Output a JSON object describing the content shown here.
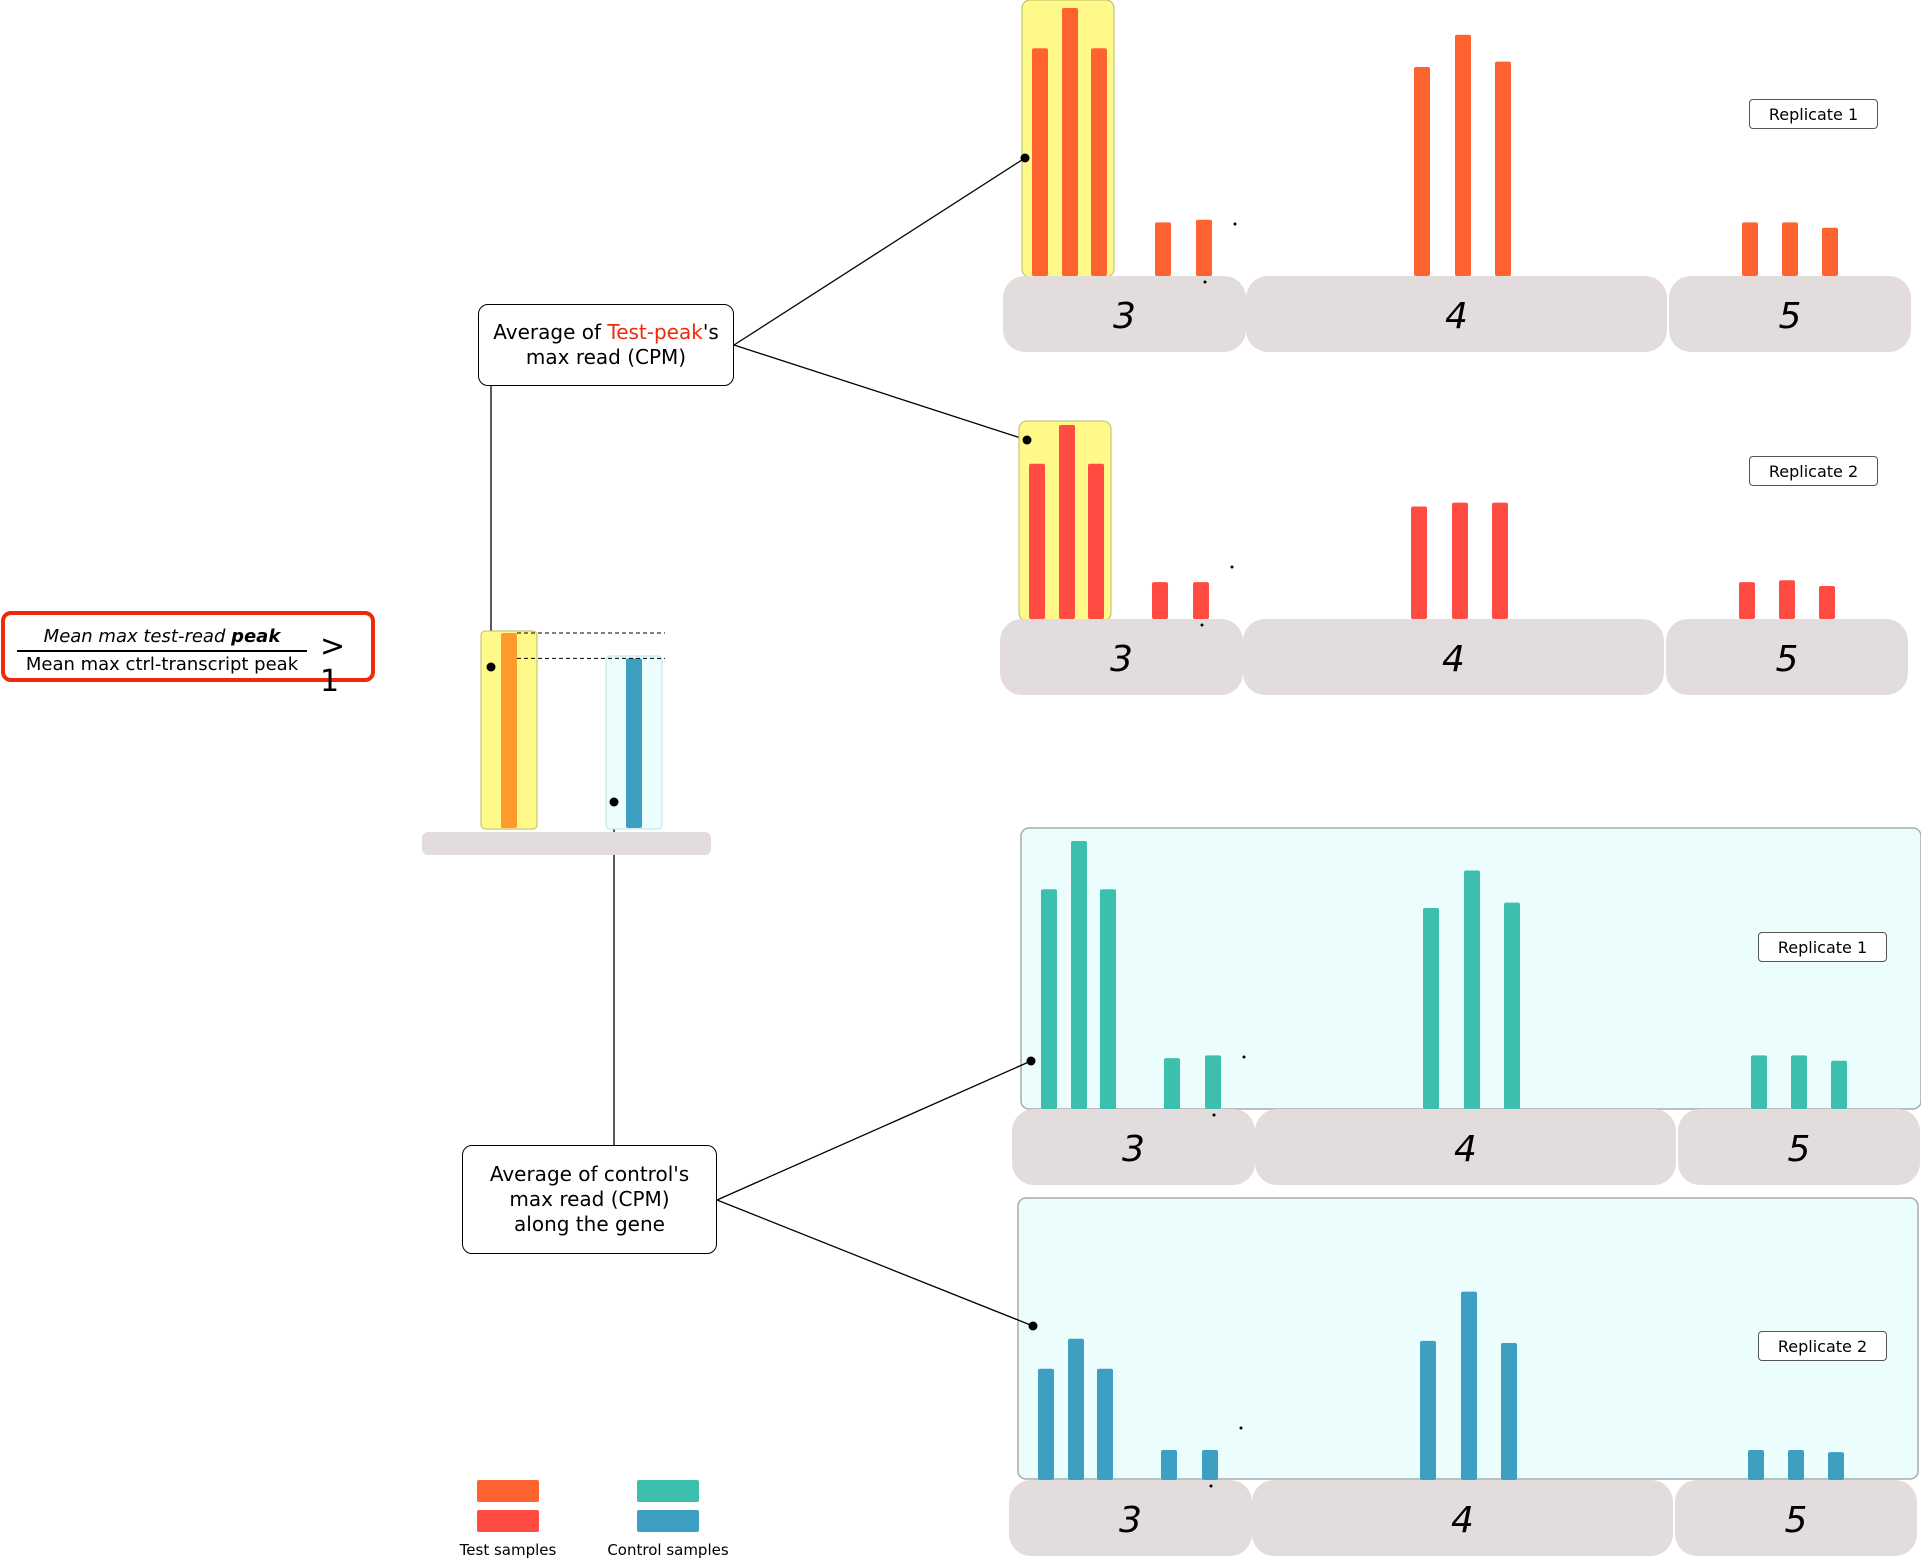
{
  "ratio": {
    "numerator_prefix": "Mean max test-read ",
    "numerator_bold": "peak",
    "denominator": "Mean max ctrl-transcript peak",
    "comparison": "> 1"
  },
  "callouts": {
    "test": {
      "prefix": "Average of ",
      "highlight": "Test-peak",
      "suffix": "'s",
      "line2": "max read (CPM)"
    },
    "control": {
      "line1": "Average of control's",
      "line2": "max read (CPM)",
      "line3": "along the gene"
    }
  },
  "panels": [
    {
      "group": "test",
      "replicate": "Replicate 1",
      "exons": [
        "3",
        "4",
        "5"
      ],
      "heights": [
        0.85,
        1.0,
        0.85,
        0.2,
        0.21,
        0.78,
        0.9,
        0.8,
        0.2,
        0.2,
        0.18
      ],
      "color": "#fe632f",
      "peak_color": "#fe632f"
    },
    {
      "group": "test",
      "replicate": "Replicate 2",
      "exons": [
        "3",
        "4",
        "5"
      ],
      "heights": [
        0.8,
        1.0,
        0.8,
        0.19,
        0.19,
        0.58,
        0.6,
        0.6,
        0.19,
        0.2,
        0.17
      ],
      "color": "#ff4b41",
      "peak_color": "#ff4b41"
    },
    {
      "group": "control",
      "replicate": "Replicate 1",
      "exons": [
        "3",
        "4",
        "5"
      ],
      "heights": [
        0.82,
        1.0,
        0.82,
        0.19,
        0.2,
        0.75,
        0.89,
        0.77,
        0.2,
        0.2,
        0.18
      ],
      "color": "#3dbfad",
      "peak_color": "#3dbfad"
    },
    {
      "group": "control",
      "replicate": "Replicate 2",
      "exons": [
        "3",
        "4",
        "5"
      ],
      "heights": [
        0.52,
        0.66,
        0.52,
        0.14,
        0.14,
        0.65,
        0.88,
        0.64,
        0.14,
        0.14,
        0.13
      ],
      "color": "#3d9fc2",
      "peak_color": "#3d9fc2"
    }
  ],
  "summary": {
    "test_level": 1.0,
    "control_level": 0.87,
    "test_color": "#ff9a2e",
    "control_color": "#3d9fc2"
  },
  "legend": [
    {
      "label": "Test samples",
      "colors": [
        "#fe632f",
        "#ff4b41"
      ]
    },
    {
      "label": "Control samples",
      "colors": [
        "#3dbfad",
        "#3d9fc2"
      ]
    }
  ],
  "colors": {
    "exon": "#e3dcdc",
    "peak_highlight": "#fff98a",
    "control_panel": "#ebfdfd",
    "ratio_border": "#ee2a0b"
  }
}
